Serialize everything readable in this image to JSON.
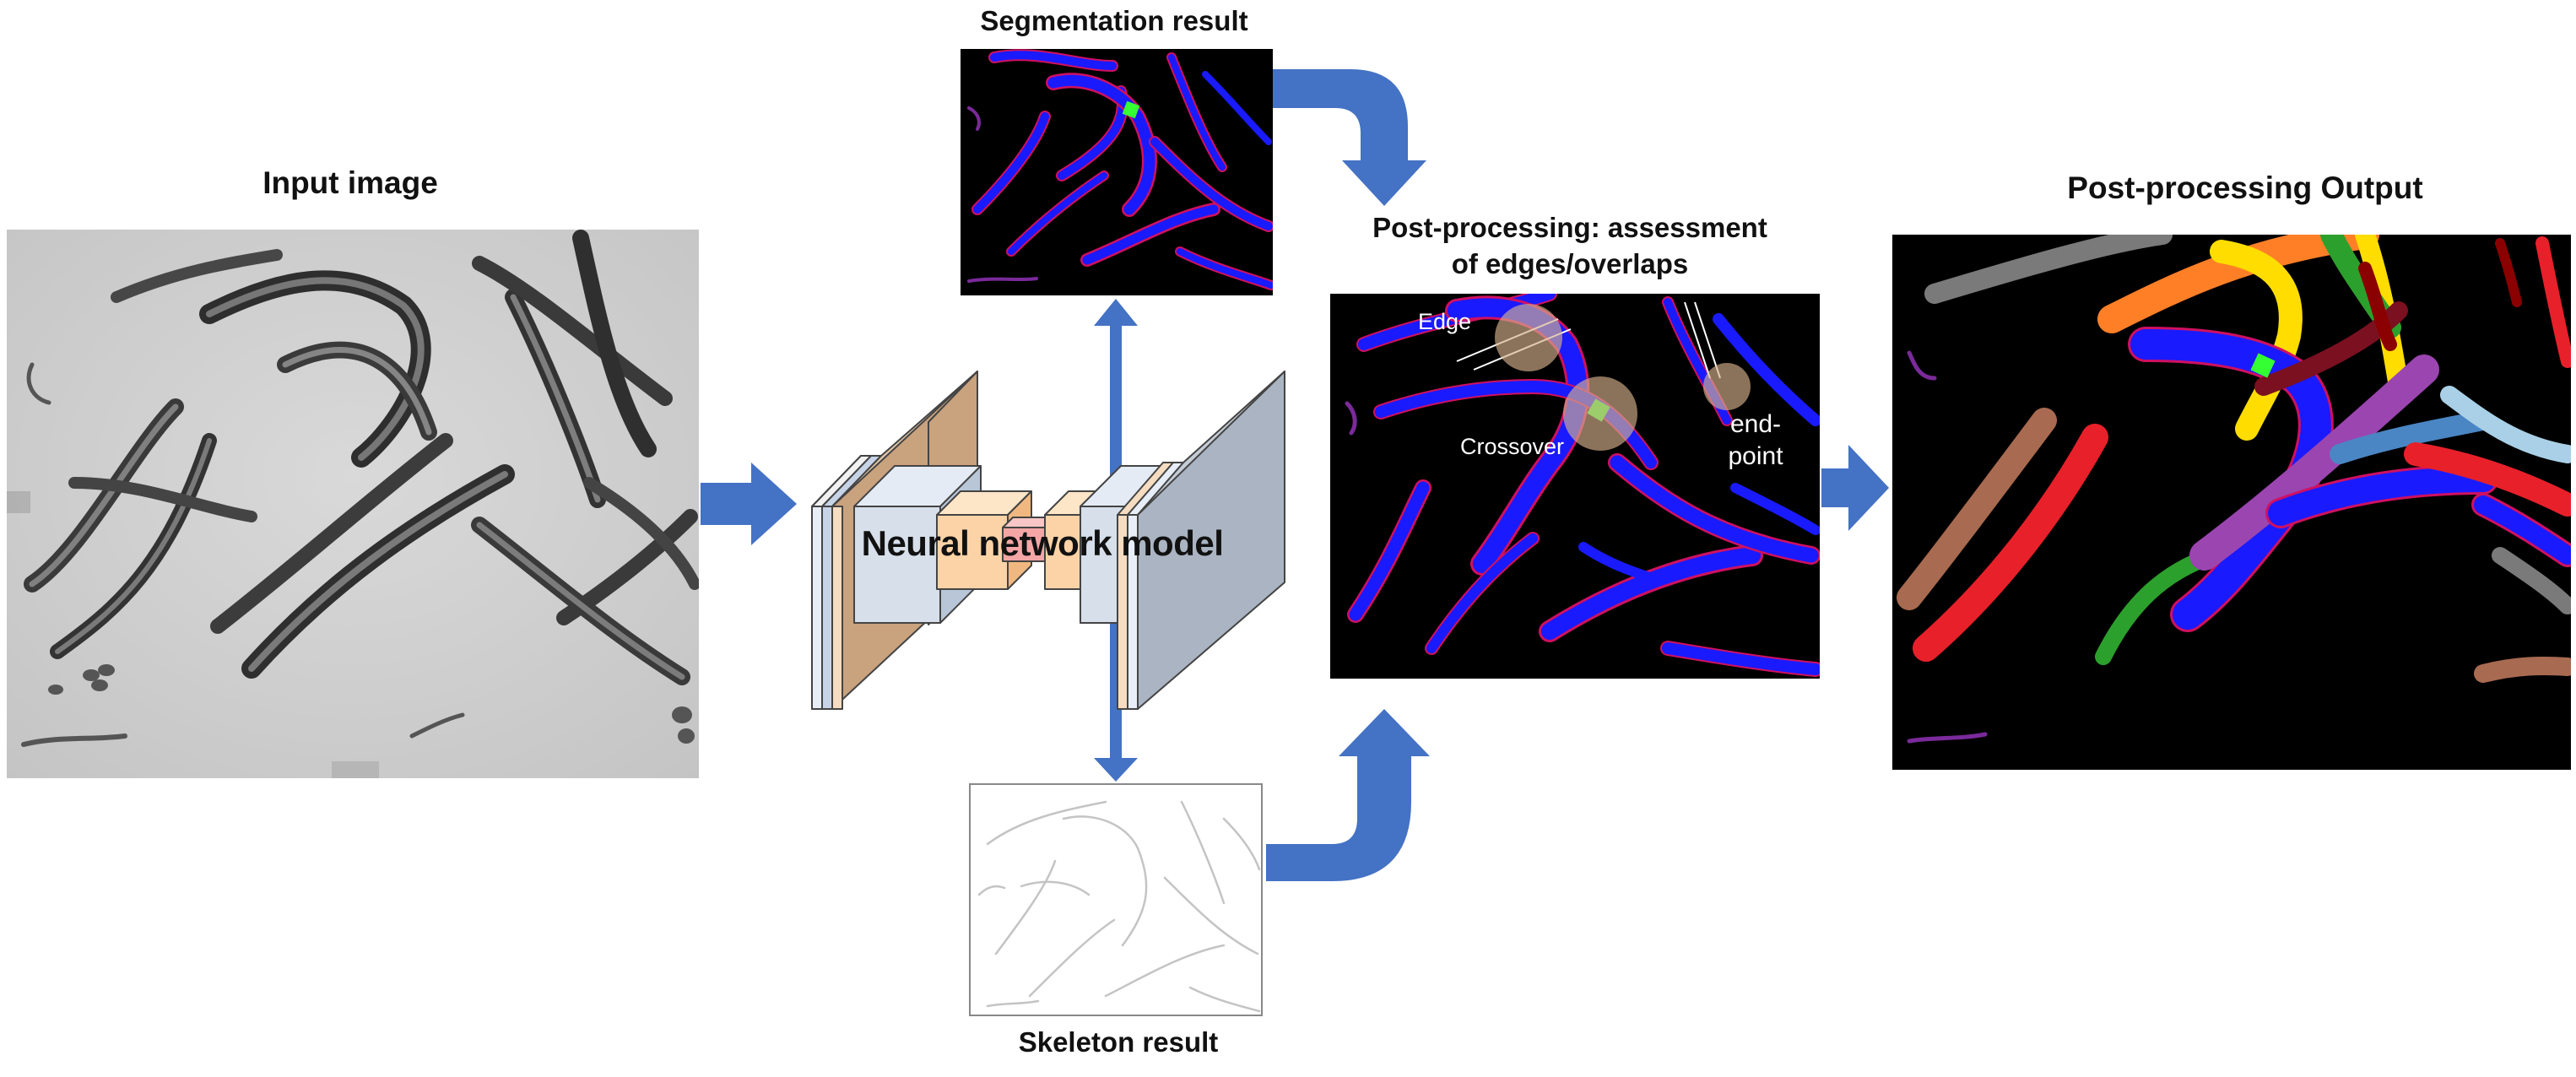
{
  "input": {
    "title": "Input image"
  },
  "network": {
    "label": "Neural network model"
  },
  "segmentation": {
    "title": "Segmentation result"
  },
  "skeleton": {
    "title": "Skeleton result"
  },
  "postprocessing": {
    "title_line1": "Post-processing: assessment",
    "title_line2": "of edges/overlaps",
    "annotations": {
      "edge": "Edge",
      "crossover": "Crossover",
      "endpoint_line1": "end-",
      "endpoint_line2": "point"
    }
  },
  "output": {
    "title": "Post-processing Output"
  },
  "colors": {
    "arrow": "#4472c4",
    "worm_mask": "#1a1aff",
    "worm_outline": "#d01060",
    "overlap": "#33ff33",
    "encoder": "#c9a27e",
    "bottleneck": "#f4a6a6",
    "decoder": "#aab4c2",
    "block": "#d6dfea",
    "cube": "#fcd3a6"
  },
  "icons": [
    "flow-arrow-icon",
    "curved-arrow-icon",
    "double-arrow-icon"
  ]
}
